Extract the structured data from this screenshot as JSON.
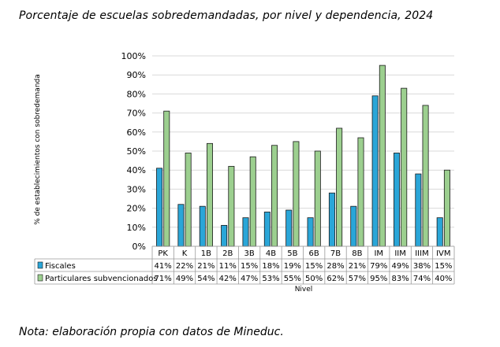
{
  "title": "Porcentaje de escuelas sobredemandadas, por nivel y dependencia, 2024",
  "note": "Nota: elaboración propia con datos de Mineduc.",
  "chart_data": {
    "type": "bar",
    "ylabel": "% de establecimientos con sobredemanda",
    "xlabel": "Nivel",
    "ylim": [
      0,
      100
    ],
    "yticks": [
      "0%",
      "10%",
      "20%",
      "30%",
      "40%",
      "50%",
      "60%",
      "70%",
      "80%",
      "90%",
      "100%"
    ],
    "categories": [
      "PK",
      "K",
      "1B",
      "2B",
      "3B",
      "4B",
      "5B",
      "6B",
      "7B",
      "8B",
      "IM",
      "IIM",
      "IIIM",
      "IVM"
    ],
    "series": [
      {
        "name": "Fiscales",
        "color": "#2aa6d8",
        "values": [
          41,
          22,
          21,
          11,
          15,
          18,
          19,
          15,
          28,
          21,
          79,
          49,
          38,
          15
        ],
        "labels": [
          "41%",
          "22%",
          "21%",
          "11%",
          "15%",
          "18%",
          "19%",
          "15%",
          "28%",
          "21%",
          "79%",
          "49%",
          "38%",
          "15%"
        ]
      },
      {
        "name": "Particulares subvencionados",
        "color": "#9ccf8f",
        "values": [
          71,
          49,
          54,
          42,
          47,
          53,
          55,
          50,
          62,
          57,
          95,
          83,
          74,
          40
        ],
        "labels": [
          "71%",
          "49%",
          "54%",
          "42%",
          "47%",
          "53%",
          "55%",
          "50%",
          "62%",
          "57%",
          "95%",
          "83%",
          "74%",
          "40%"
        ]
      }
    ]
  }
}
